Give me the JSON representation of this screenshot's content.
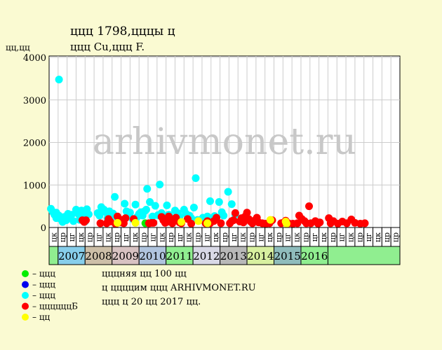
{
  "title_line1": "ццц 1798,цццы ц",
  "title_line2": "ццц Cu,ццц F.",
  "y_unit": "цц,цц",
  "watermark": "arhivmonet.ru",
  "colors": {
    "background": "#fafad2",
    "plot_background": "#ffffff",
    "grid": "#cccccc",
    "watermark": "#c8c8c8"
  },
  "legend": [
    {
      "label": "– ццц",
      "color": "#00ee00"
    },
    {
      "label": "– ццц",
      "color": "#0000ee"
    },
    {
      "label": "– ццц",
      "color": "#00ffff"
    },
    {
      "label": "– ццццццБ",
      "color": "#ff0000"
    },
    {
      "label": "– цц",
      "color": "#ffff00"
    }
  ],
  "notes": [
    "цццняя цц 100 цц",
    "ц ццццим ццц ARHIVMONET.RU",
    "ццц ц 20 цц 2017 цц."
  ],
  "chart_data": {
    "type": "scatter",
    "ylim": [
      0,
      4000
    ],
    "yticks": [
      0,
      1000,
      2000,
      3000,
      4000
    ],
    "grid": true,
    "x_slots": [
      "цк",
      "цр",
      "цг",
      "цк",
      "цр",
      "цг",
      "цк",
      "цр",
      "цг",
      "цк",
      "цр",
      "цг",
      "цк",
      "цр",
      "цг",
      "цк",
      "цр",
      "цг",
      "цк",
      "цр",
      "цг",
      "цк",
      "цр",
      "цг",
      "цк",
      "цр",
      "цг",
      "цк",
      "цр",
      "цг",
      "цк",
      "цр",
      "цг",
      "цк",
      "цр",
      "цг",
      "цк",
      "цр",
      "цр"
    ],
    "years": [
      {
        "label": "2007",
        "color": "#87ceeb"
      },
      {
        "label": "2008",
        "color": "#cdbfa8"
      },
      {
        "label": "2009",
        "color": "#d8c2c2"
      },
      {
        "label": "2010",
        "color": "#b0c4de"
      },
      {
        "label": "2011",
        "color": "#90ee90"
      },
      {
        "label": "2012",
        "color": "#d8d8e6"
      },
      {
        "label": "2013",
        "color": "#b8b8b8"
      },
      {
        "label": "2014",
        "color": "#d8f0a0"
      },
      {
        "label": "2015",
        "color": "#8fbcbc"
      },
      {
        "label": "2016",
        "color": "#90ee90"
      }
    ],
    "series": [
      {
        "color": "#00ffff",
        "points": [
          [
            0.2,
            440
          ],
          [
            0.4,
            370
          ],
          [
            0.6,
            300
          ],
          [
            0.8,
            220
          ],
          [
            0.8,
            350
          ],
          [
            1.1,
            3480
          ],
          [
            1.1,
            280
          ],
          [
            1.3,
            200
          ],
          [
            1.5,
            130
          ],
          [
            1.7,
            250
          ],
          [
            1.9,
            170
          ],
          [
            2.1,
            320
          ],
          [
            2.3,
            240
          ],
          [
            2.5,
            300
          ],
          [
            2.7,
            150
          ],
          [
            3,
            420
          ],
          [
            3.2,
            330
          ],
          [
            3.4,
            180
          ],
          [
            3.6,
            400
          ],
          [
            3.8,
            270
          ],
          [
            4,
            140
          ],
          [
            4.2,
            430
          ],
          [
            4.4,
            310
          ],
          [
            5.4,
            340
          ],
          [
            5.6,
            280
          ],
          [
            5.8,
            480
          ],
          [
            6.1,
            420
          ],
          [
            6.3,
            360
          ],
          [
            6.5,
            220
          ],
          [
            6.7,
            380
          ],
          [
            6.9,
            290
          ],
          [
            7.1,
            330
          ],
          [
            7.3,
            720
          ],
          [
            7.5,
            250
          ],
          [
            7.7,
            180
          ],
          [
            8.4,
            560
          ],
          [
            8.6,
            380
          ],
          [
            8.8,
            290
          ],
          [
            9,
            350
          ],
          [
            9.3,
            200
          ],
          [
            9.6,
            540
          ],
          [
            9.8,
            250
          ],
          [
            10,
            320
          ],
          [
            10.2,
            360
          ],
          [
            10.4,
            280
          ],
          [
            10.6,
            380
          ],
          [
            10.8,
            420
          ],
          [
            10.9,
            910
          ],
          [
            11.2,
            600
          ],
          [
            11.5,
            260
          ],
          [
            11.8,
            510
          ],
          [
            12.1,
            290
          ],
          [
            12.3,
            1010
          ],
          [
            12.5,
            340
          ],
          [
            12.7,
            190
          ],
          [
            13.1,
            520
          ],
          [
            13.3,
            300
          ],
          [
            13.5,
            240
          ],
          [
            14,
            400
          ],
          [
            14.3,
            340
          ],
          [
            14.5,
            260
          ],
          [
            15,
            420
          ],
          [
            15.2,
            330
          ],
          [
            15.6,
            280
          ],
          [
            15.8,
            220
          ],
          [
            16.1,
            470
          ],
          [
            16.3,
            1160
          ],
          [
            16.5,
            180
          ],
          [
            17.1,
            230
          ],
          [
            17.3,
            140
          ],
          [
            17.6,
            260
          ],
          [
            17.9,
            620
          ],
          [
            18.1,
            180
          ],
          [
            18.4,
            270
          ],
          [
            18.9,
            600
          ],
          [
            19.2,
            360
          ],
          [
            19.4,
            280
          ],
          [
            19.9,
            840
          ],
          [
            20.3,
            550
          ],
          [
            20.7,
            300
          ]
        ]
      },
      {
        "color": "#00ee00",
        "points": [
          [
            10.7,
            100
          ]
        ]
      },
      {
        "color": "#ff0000",
        "points": [
          [
            3.7,
            170
          ],
          [
            3.9,
            130
          ],
          [
            4.1,
            170
          ],
          [
            5.7,
            100
          ],
          [
            6.4,
            100
          ],
          [
            6.6,
            200
          ],
          [
            6.8,
            140
          ],
          [
            7.4,
            80
          ],
          [
            7.6,
            260
          ],
          [
            7.8,
            120
          ],
          [
            8.1,
            180
          ],
          [
            8.3,
            100
          ],
          [
            8.5,
            220
          ],
          [
            9.4,
            200
          ],
          [
            11.1,
            100
          ],
          [
            11.4,
            110
          ],
          [
            11.6,
            110
          ],
          [
            12.5,
            250
          ],
          [
            12.7,
            170
          ],
          [
            12.9,
            110
          ],
          [
            13.1,
            130
          ],
          [
            13.3,
            260
          ],
          [
            13.5,
            180
          ],
          [
            13.7,
            100
          ],
          [
            14.1,
            230
          ],
          [
            14.5,
            120
          ],
          [
            14.7,
            100
          ],
          [
            15.4,
            200
          ],
          [
            15.8,
            90
          ],
          [
            17.4,
            100
          ],
          [
            17.6,
            150
          ],
          [
            17.9,
            100
          ],
          [
            18.3,
            150
          ],
          [
            18.6,
            230
          ],
          [
            19.1,
            100
          ],
          [
            20.1,
            100
          ],
          [
            20.3,
            150
          ],
          [
            20.5,
            170
          ],
          [
            20.7,
            340
          ],
          [
            21.2,
            140
          ],
          [
            21.4,
            220
          ],
          [
            21.6,
            120
          ],
          [
            21.8,
            260
          ],
          [
            22,
            350
          ],
          [
            22.2,
            200
          ],
          [
            22.4,
            140
          ],
          [
            22.6,
            100
          ],
          [
            22.9,
            170
          ],
          [
            23.1,
            230
          ],
          [
            23.3,
            120
          ],
          [
            23.7,
            100
          ],
          [
            24.1,
            90
          ],
          [
            24.5,
            100
          ],
          [
            24.8,
            170
          ],
          [
            25.8,
            100
          ],
          [
            26.1,
            120
          ],
          [
            26.3,
            160
          ],
          [
            26.6,
            100
          ],
          [
            27.1,
            90
          ],
          [
            27.6,
            100
          ],
          [
            27.8,
            280
          ],
          [
            28.1,
            200
          ],
          [
            28.4,
            150
          ],
          [
            28.6,
            100
          ],
          [
            28.9,
            500
          ],
          [
            29.1,
            100
          ],
          [
            29.6,
            150
          ],
          [
            29.9,
            90
          ],
          [
            30.1,
            120
          ],
          [
            31.1,
            220
          ],
          [
            31.3,
            100
          ],
          [
            31.6,
            150
          ],
          [
            32.1,
            90
          ],
          [
            32.6,
            140
          ],
          [
            33.1,
            100
          ],
          [
            33.6,
            190
          ],
          [
            34,
            110
          ],
          [
            34.6,
            90
          ],
          [
            35.1,
            100
          ]
        ]
      },
      {
        "color": "#ffff00",
        "points": [
          [
            7.6,
            110
          ],
          [
            9.6,
            110
          ],
          [
            14.7,
            130
          ],
          [
            16.6,
            150
          ],
          [
            17.6,
            100
          ],
          [
            24.6,
            180
          ],
          [
            26.3,
            140
          ],
          [
            26.4,
            90
          ]
        ]
      }
    ]
  }
}
